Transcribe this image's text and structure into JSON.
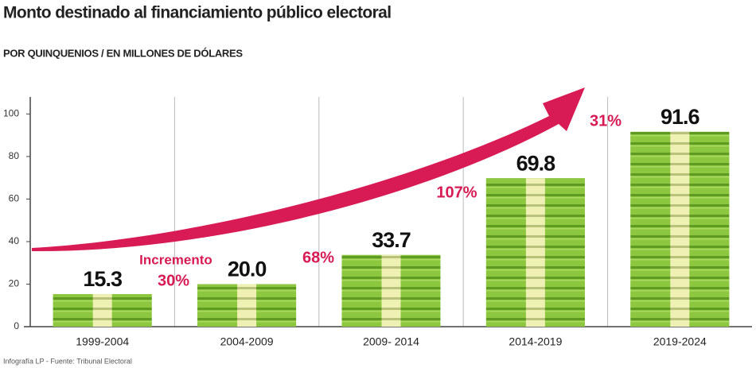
{
  "chart_data": {
    "type": "bar",
    "title": "Monto destinado al financiamiento público electoral",
    "subtitle": "POR QUINQUENIOS / EN MILLONES DE DÓLARES",
    "categories": [
      "1999-2004",
      "2004-2009",
      "2009- 2014",
      "2014-2019",
      "2019-2024"
    ],
    "values": [
      15.3,
      20.0,
      33.7,
      69.8,
      91.6
    ],
    "value_labels": [
      "15.3",
      "20.0",
      "33.7",
      "69.8",
      "91.6"
    ],
    "color": "#8dc63f",
    "ylim": [
      0,
      108
    ],
    "yticks": [
      0,
      20,
      40,
      60,
      80,
      100
    ],
    "annotations": [
      "Incremento",
      "30%",
      "68%",
      "107%",
      "31%"
    ],
    "source": "Infografía LP - Fuente: Tribunal Electoral"
  }
}
